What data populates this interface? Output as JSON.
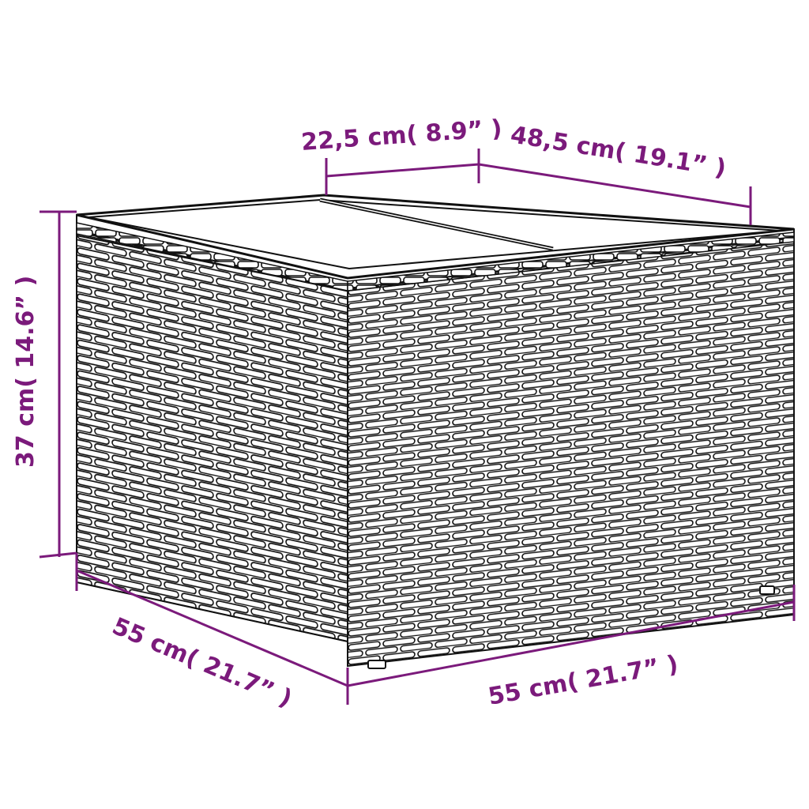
{
  "accent_color": "#7b1a7b",
  "product": {
    "description_icon": "wicker-storage-box-icon"
  },
  "dimensions": {
    "lid_section": "22,5 cm( 8.9” )",
    "lid_section_2": "48,5 cm( 19.1” )",
    "height": "37 cm( 14.6” )",
    "depth": "55 cm( 21.7” )",
    "width": "55 cm( 21.7” )"
  }
}
